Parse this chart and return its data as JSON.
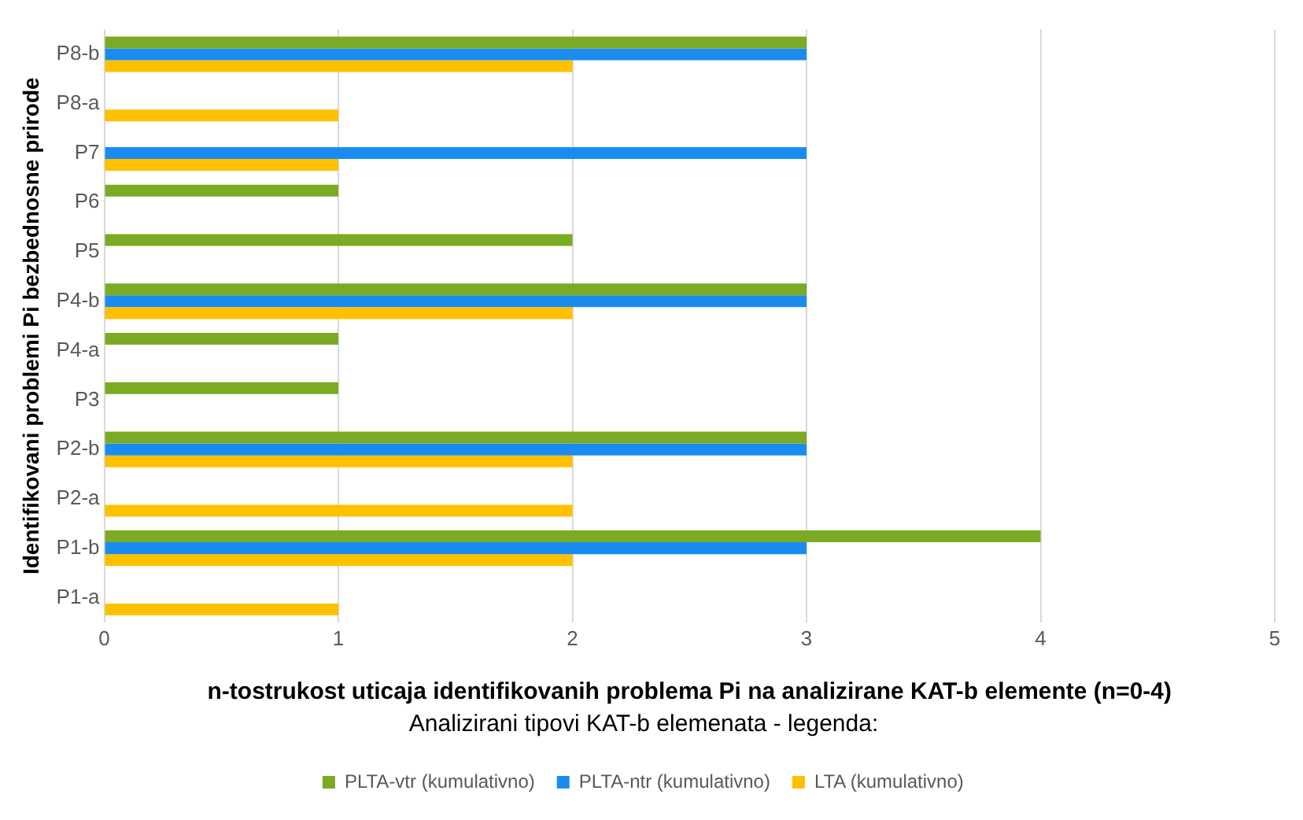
{
  "chart_data": {
    "type": "bar",
    "orientation": "horizontal",
    "xlabel": "n-tostrukost uticaja identifikovanih problema Pi na analizirane KAT-b elemente (n=0-4)",
    "ylabel": "Identifikovani problemi Pi bezbednosne prirode",
    "legend_title": "Analizirani tipovi KAT-b elemenata - legenda:",
    "categories": [
      "P8-b",
      "P8-a",
      "P7",
      "P6",
      "P5",
      "P4-b",
      "P4-a",
      "P3",
      "P2-b",
      "P2-a",
      "P1-b",
      "P1-a"
    ],
    "series": [
      {
        "name": "PLTA-vtr (kumulativno)",
        "color": "#7aab22",
        "values": [
          3,
          null,
          null,
          1,
          2,
          3,
          1,
          1,
          3,
          null,
          4,
          null
        ]
      },
      {
        "name": "PLTA-ntr (kumulativno)",
        "color": "#1a8cf0",
        "values": [
          3,
          null,
          3,
          null,
          null,
          3,
          null,
          null,
          3,
          null,
          3,
          null
        ]
      },
      {
        "name": "LTA (kumulativno)",
        "color": "#ffc000",
        "values": [
          2,
          1,
          1,
          null,
          null,
          2,
          null,
          null,
          2,
          2,
          2,
          1
        ]
      }
    ],
    "xlim": [
      0,
      5
    ],
    "xticks": [
      0,
      1,
      2,
      3,
      4,
      5
    ],
    "grid": "x",
    "legend": "bottom"
  }
}
